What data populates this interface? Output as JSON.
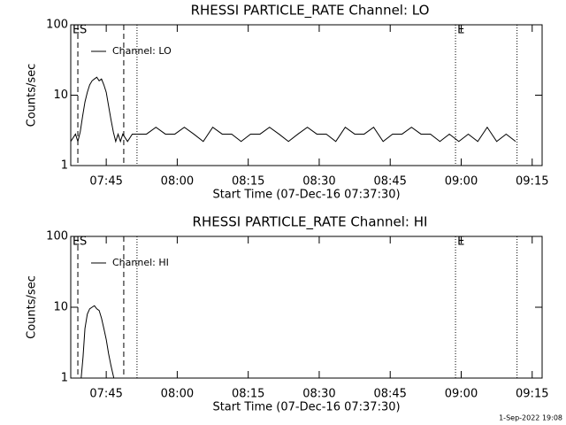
{
  "chart_data": [
    {
      "type": "line",
      "title": "RHESSI PARTICLE_RATE Channel: LO",
      "xlabel": "Start Time (07-Dec-16 07:37:30)",
      "ylabel": "Counts/sec",
      "x": [
        0,
        1,
        1.5,
        2,
        2.5,
        3,
        3.5,
        4,
        4.5,
        5,
        5.5,
        6,
        6.5,
        7,
        7.5,
        8,
        8.5,
        9,
        9.5,
        10,
        10.5,
        11,
        12,
        13,
        14,
        16,
        18,
        20,
        22,
        24,
        26,
        28,
        30,
        32,
        34,
        36,
        38,
        40,
        42,
        44,
        46,
        48,
        50,
        52,
        54,
        56,
        58,
        60,
        62,
        64,
        66,
        68,
        70,
        72,
        74,
        76,
        78,
        80,
        82,
        84,
        86,
        88,
        90,
        92,
        94
      ],
      "series": [
        {
          "name": "Channel: LO",
          "color": "#000000",
          "values": [
            2.2,
            2.8,
            2.2,
            3,
            5,
            8,
            11,
            14,
            16,
            17,
            18,
            16,
            17,
            14,
            11,
            7,
            4.5,
            3,
            2.2,
            2.8,
            2.2,
            2.8,
            2.2,
            2.8,
            2.8,
            2.8,
            3.5,
            2.8,
            2.8,
            3.5,
            2.8,
            2.2,
            3.5,
            2.8,
            2.8,
            2.2,
            2.8,
            2.8,
            3.5,
            2.8,
            2.2,
            2.8,
            3.5,
            2.8,
            2.8,
            2.2,
            3.5,
            2.8,
            2.8,
            3.5,
            2.2,
            2.8,
            2.8,
            3.5,
            2.8,
            2.8,
            2.2,
            2.8,
            2.2,
            2.8,
            2.2,
            3.5,
            2.2,
            2.8,
            2.2
          ]
        }
      ],
      "xlim": [
        0,
        99.6
      ],
      "ylim": [
        1,
        100
      ],
      "log_y": true,
      "xticks": [
        {
          "value": 7.5,
          "label": "07:45"
        },
        {
          "value": 22.5,
          "label": "08:00"
        },
        {
          "value": 37.5,
          "label": "08:15"
        },
        {
          "value": 52.5,
          "label": "08:30"
        },
        {
          "value": 67.5,
          "label": "08:45"
        },
        {
          "value": 82.5,
          "label": "09:00"
        },
        {
          "value": 97.5,
          "label": "09:15"
        }
      ],
      "yticks": [
        1,
        10,
        100
      ],
      "markers": [
        {
          "x": 0,
          "label": "E",
          "dash": "dotted"
        },
        {
          "x": 1.5,
          "label": "S",
          "dash": "dashed"
        },
        {
          "x": 11.2,
          "dash": "dashed"
        },
        {
          "x": 14,
          "dash": "dotted"
        },
        {
          "x": 81.3,
          "label": "E",
          "dash": "dotted"
        },
        {
          "x": 94.3,
          "dash": "dotted"
        }
      ]
    },
    {
      "type": "line",
      "title": "RHESSI PARTICLE_RATE Channel: HI",
      "xlabel": "Start Time (07-Dec-16 07:37:30)",
      "ylabel": "Counts/sec",
      "x": [
        2.2,
        2.6,
        3,
        3.5,
        4,
        4.5,
        5,
        5.5,
        6,
        6.5,
        7,
        7.5,
        8,
        8.5,
        9.1
      ],
      "series": [
        {
          "name": "Channel: HI",
          "color": "#000000",
          "values": [
            1,
            2,
            5,
            8,
            9.5,
            10,
            10.5,
            9.5,
            9,
            7,
            5,
            3.5,
            2.2,
            1.5,
            1
          ]
        }
      ],
      "xlim": [
        0,
        99.6
      ],
      "ylim": [
        1,
        100
      ],
      "log_y": true,
      "xticks": [
        {
          "value": 7.5,
          "label": "07:45"
        },
        {
          "value": 22.5,
          "label": "08:00"
        },
        {
          "value": 37.5,
          "label": "08:15"
        },
        {
          "value": 52.5,
          "label": "08:30"
        },
        {
          "value": 67.5,
          "label": "08:45"
        },
        {
          "value": 82.5,
          "label": "09:00"
        },
        {
          "value": 97.5,
          "label": "09:15"
        }
      ],
      "yticks": [
        1,
        10,
        100
      ],
      "markers": [
        {
          "x": 0,
          "label": "E",
          "dash": "dotted"
        },
        {
          "x": 1.5,
          "label": "S",
          "dash": "dashed"
        },
        {
          "x": 11.2,
          "dash": "dashed"
        },
        {
          "x": 14,
          "dash": "dotted"
        },
        {
          "x": 81.3,
          "label": "E",
          "dash": "dotted"
        },
        {
          "x": 94.3,
          "dash": "dotted"
        }
      ]
    }
  ],
  "footer": "1-Sep-2022 19:08"
}
